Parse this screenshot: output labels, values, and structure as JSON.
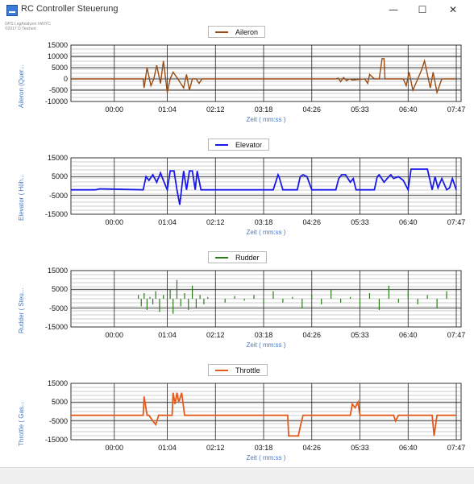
{
  "window": {
    "title": "RC Controller Steuerung",
    "minimize_glyph": "—",
    "maximize_glyph": "☐",
    "close_glyph": "✕"
  },
  "credit": {
    "line1": "GPS LogAnalyzer hWiYC",
    "line2": "©2017 D.Teichert"
  },
  "colors": {
    "aileron": "#9a4a12",
    "elevator": "#1a1ae8",
    "rudder": "#2d7a1d",
    "throttle": "#e35b1c",
    "axis_label": "#4a78c4",
    "grid": "#555555"
  },
  "chart_data": [
    {
      "type": "line",
      "name": "Aileron",
      "legend": "Aileron",
      "ylabel": "Aileron (Quer...",
      "xlabel": "Zeit ( mm:ss )",
      "ylim": [
        -10000,
        15000
      ],
      "yticks": [
        "15000",
        "10000",
        "5000",
        "0",
        "-5000",
        "-10000"
      ],
      "xticks": [
        "00:00",
        "01:04",
        "02:12",
        "03:18",
        "04:26",
        "05:33",
        "06:40",
        "07:47"
      ],
      "color": "#9a4a12",
      "x": [
        0,
        1.5,
        1.52,
        1.58,
        1.66,
        1.72,
        1.78,
        1.86,
        1.92,
        2.0,
        2.06,
        2.12,
        2.22,
        2.34,
        2.4,
        2.46,
        2.52,
        2.6,
        2.66,
        2.72,
        5.5,
        5.55,
        5.6,
        5.66,
        5.72,
        5.78,
        5.84,
        6.1,
        6.16,
        6.2,
        6.3,
        6.4,
        6.46,
        6.5,
        6.52,
        6.6,
        6.9,
        6.96,
        7.02,
        7.1,
        7.2,
        7.28,
        7.34,
        7.4,
        7.46,
        7.52,
        7.6,
        7.7,
        7.8,
        8.0
      ],
      "y": [
        0,
        0,
        -4000,
        5000,
        -3000,
        0,
        6000,
        -2000,
        8000,
        -6000,
        0,
        3000,
        0,
        -4000,
        2000,
        -5000,
        0,
        0,
        -2000,
        0,
        0,
        300,
        -1200,
        600,
        -800,
        0,
        -500,
        0,
        -2000,
        2000,
        0,
        0,
        9000,
        9000,
        0,
        0,
        0,
        -3000,
        3000,
        -5000,
        0,
        4000,
        8000,
        2000,
        -4000,
        3000,
        -6000,
        0,
        0,
        0
      ]
    },
    {
      "type": "line",
      "name": "Elevator",
      "legend": "Elevator",
      "ylabel": "Elevator ( Höh...",
      "xlabel": "Zeit ( mm:ss )",
      "ylim": [
        -15000,
        15000
      ],
      "yticks": [
        "15000",
        "5000",
        "-5000",
        "-15000"
      ],
      "xticks": [
        "00:00",
        "01:04",
        "02:12",
        "03:18",
        "04:26",
        "05:33",
        "06:40",
        "07:47"
      ],
      "color": "#1a1ae8",
      "x": [
        0,
        0.5,
        0.6,
        1.5,
        1.56,
        1.62,
        1.7,
        1.78,
        1.86,
        1.92,
        2.0,
        2.06,
        2.14,
        2.2,
        2.26,
        2.34,
        2.4,
        2.46,
        2.52,
        2.58,
        2.62,
        2.7,
        2.78,
        3.0,
        3.5,
        4.0,
        4.2,
        4.3,
        4.32,
        4.4,
        4.5,
        4.6,
        4.7,
        4.76,
        4.82,
        4.9,
        5.0,
        5.5,
        5.56,
        5.62,
        5.7,
        5.8,
        5.86,
        5.92,
        6.3,
        6.36,
        6.4,
        6.5,
        6.6,
        6.64,
        6.7,
        6.8,
        6.9,
        7.0,
        7.06,
        7.12,
        7.2,
        7.3,
        7.4,
        7.5,
        7.56,
        7.62,
        7.7,
        7.8,
        7.86,
        7.92,
        8.0
      ],
      "y": [
        -2000,
        -2000,
        -1500,
        -2000,
        5000,
        3000,
        6000,
        2000,
        7000,
        3000,
        -2000,
        8000,
        8000,
        -2000,
        -10000,
        8000,
        -2000,
        8000,
        8000,
        -2000,
        8000,
        -2000,
        -2000,
        -2000,
        -2000,
        -2000,
        -2000,
        6000,
        5000,
        -2000,
        -2000,
        -2000,
        -2000,
        5000,
        6000,
        5000,
        -2000,
        -2000,
        4000,
        6000,
        6000,
        2000,
        4000,
        -2000,
        -2000,
        5000,
        6000,
        2000,
        5000,
        6000,
        4000,
        5000,
        3000,
        -2000,
        9000,
        9000,
        9000,
        9000,
        9000,
        -2000,
        5000,
        -1000,
        4000,
        -2000,
        -1000,
        4000,
        -2000
      ]
    },
    {
      "type": "line",
      "name": "Rudder",
      "legend": "Rudder",
      "ylabel": "Rudder ( Steu...",
      "xlabel": "Zeit ( mm:ss )",
      "ylim": [
        -15000,
        15000
      ],
      "yticks": [
        "15000",
        "5000",
        "-5000",
        "-15000"
      ],
      "xticks": [
        "00:00",
        "01:04",
        "02:12",
        "03:18",
        "04:26",
        "05:33",
        "06:40",
        "07:47"
      ],
      "color": "#2d7a1d",
      "x": [
        1.4,
        1.46,
        1.52,
        1.58,
        1.64,
        1.7,
        1.76,
        1.84,
        1.92,
        2.0,
        2.06,
        2.12,
        2.2,
        2.28,
        2.36,
        2.44,
        2.52,
        2.6,
        2.68,
        2.76,
        2.84,
        3.0,
        3.2,
        3.4,
        3.6,
        3.8,
        4.0,
        4.2,
        4.4,
        4.6,
        4.8,
        5.0,
        5.2,
        5.4,
        5.6,
        5.8,
        6.0,
        6.2,
        6.4,
        6.6,
        6.8,
        7.0,
        7.2,
        7.4,
        7.6,
        7.8
      ],
      "y": [
        2000,
        -4000,
        3000,
        -6000,
        1000,
        -3000,
        4000,
        -7000,
        2000,
        -2000,
        5000,
        -8000,
        10000,
        -4000,
        3000,
        -6000,
        7000,
        -5000,
        2000,
        -3000,
        1000,
        500,
        -2000,
        1500,
        -1000,
        2000,
        -3000,
        4000,
        -2000,
        1000,
        -5000,
        2000,
        -3000,
        5000,
        -2000,
        1000,
        -4000,
        3000,
        -6000,
        7000,
        -2000,
        4000,
        -3000,
        2000,
        -5000,
        4000
      ]
    },
    {
      "type": "line",
      "name": "Throttle",
      "legend": "Throttle",
      "ylabel": "Throttle ( Gas...",
      "xlabel": "Zeit ( mm:ss )",
      "ylim": [
        -15000,
        15000
      ],
      "yticks": [
        "15000",
        "5000",
        "-5000",
        "-15000"
      ],
      "xticks": [
        "00:00",
        "01:04",
        "02:12",
        "03:18",
        "04:26",
        "05:33",
        "06:40",
        "07:47"
      ],
      "color": "#e35b1c",
      "x": [
        0,
        1.5,
        1.52,
        1.58,
        1.62,
        1.7,
        1.76,
        1.82,
        1.9,
        2.0,
        2.1,
        2.12,
        2.16,
        2.2,
        2.24,
        2.3,
        2.36,
        2.5,
        2.52,
        2.56,
        2.6,
        2.64,
        2.7,
        2.74,
        2.8,
        4.5,
        4.52,
        4.62,
        4.72,
        4.78,
        4.82,
        4.9,
        5.0,
        5.8,
        5.84,
        5.9,
        5.96,
        6.0,
        6.2,
        6.7,
        6.74,
        6.8,
        7.0,
        7.5,
        7.54,
        7.6,
        7.8,
        7.86,
        7.92,
        8.0
      ],
      "y": [
        -2000,
        -2000,
        8000,
        -2000,
        -2000,
        -5000,
        -7000,
        -2000,
        -2000,
        -2000,
        -2000,
        10000,
        4000,
        10000,
        5000,
        10000,
        -2000,
        -2000,
        -2000,
        -2000,
        -2000,
        -2000,
        -2000,
        -2000,
        -2000,
        -2000,
        -13000,
        -13000,
        -13000,
        -6000,
        -2000,
        -2000,
        -2000,
        -2000,
        4000,
        2000,
        5000,
        -2000,
        -2000,
        -2000,
        -5000,
        -2000,
        -2000,
        -2000,
        -13000,
        -2000,
        -2000,
        -2000,
        -2000,
        -2000
      ]
    }
  ]
}
